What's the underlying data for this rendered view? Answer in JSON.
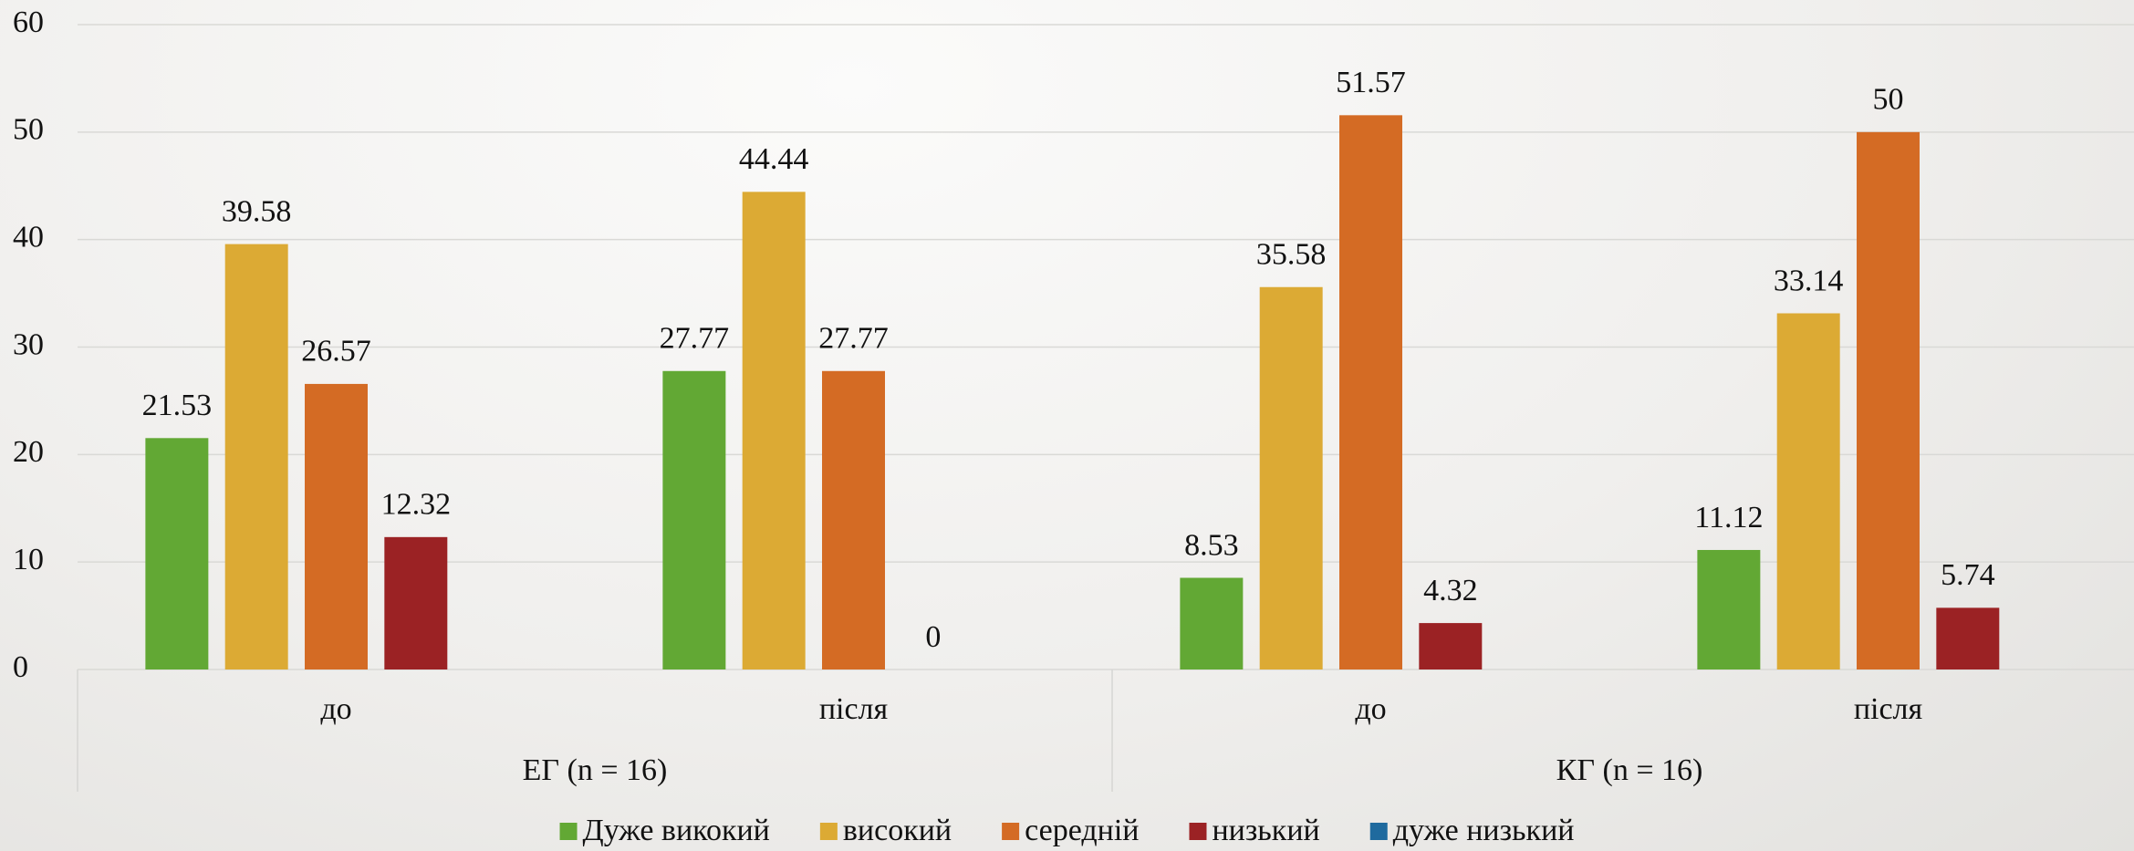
{
  "chart_data": {
    "type": "bar",
    "categories": [
      "до",
      "після",
      "до",
      "після"
    ],
    "groups": [
      "ЕГ (n = 16)",
      "КГ (n = 16)"
    ],
    "series": [
      {
        "name": "Дуже викокий",
        "color": "#62a834",
        "values": [
          21.53,
          27.77,
          8.53,
          11.12
        ]
      },
      {
        "name": "високий",
        "color": "#dcaa34",
        "values": [
          39.58,
          44.44,
          35.58,
          33.14
        ]
      },
      {
        "name": "середній",
        "color": "#d46b24",
        "values": [
          26.57,
          27.77,
          51.57,
          50
        ]
      },
      {
        "name": "низький",
        "color": "#9b2224",
        "values": [
          12.32,
          0,
          4.32,
          5.74
        ]
      },
      {
        "name": "дуже низький",
        "color": "#1f6a9e",
        "values": [
          null,
          null,
          null,
          null
        ]
      }
    ],
    "ylim": [
      0,
      60
    ],
    "yticks": [
      0,
      10,
      20,
      30,
      40,
      50,
      60
    ],
    "grid": true,
    "legend": "bottom"
  }
}
